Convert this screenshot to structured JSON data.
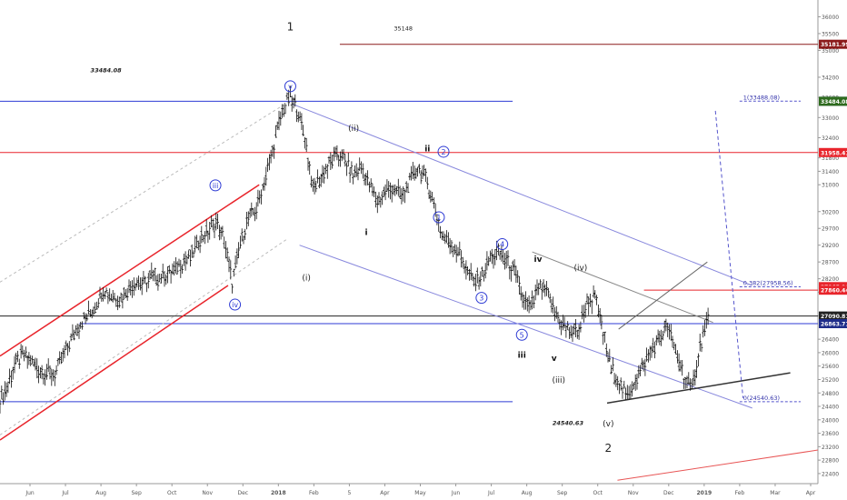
{
  "chart_data": {
    "type": "ohlc",
    "title": "",
    "xlabel": "",
    "ylabel": "",
    "y_axis_side": "right",
    "ylim": [
      22100,
      36500
    ],
    "x_ticks": [
      "Jun",
      "Jul",
      "Aug",
      "Sep",
      "Oct",
      "Nov",
      "Dec",
      "2018",
      "Feb",
      "5",
      "Apr",
      "May",
      "Jun",
      "Jul",
      "Aug",
      "Sep",
      "Oct",
      "Nov",
      "Dec",
      "2019",
      "Feb",
      "Mar",
      "Apr"
    ],
    "y_ticks": [
      36000,
      35500,
      35000,
      34200,
      33600,
      33000,
      32400,
      31800,
      31400,
      31000,
      30200,
      29700,
      29200,
      28700,
      28200,
      27800,
      27100,
      26400,
      26000,
      25600,
      25200,
      24800,
      24400,
      24000,
      23600,
      23200,
      22800,
      22400
    ],
    "price_tags": [
      {
        "value": "35181.99",
        "color": "#8b1a1a"
      },
      {
        "value": "33484.08",
        "color": "#1f2d8a"
      },
      {
        "value": "33484.08",
        "color": "#2e6b1e"
      },
      {
        "value": "31958.41",
        "color": "#e8242b"
      },
      {
        "value": "27965.96",
        "color": "#e8242b"
      },
      {
        "value": "27860.44",
        "color": "#e8242b"
      },
      {
        "value": "27090.81",
        "color": "#222222"
      },
      {
        "value": "26863.71",
        "color": "#1f2d8a"
      }
    ],
    "wave_labels": [
      {
        "text": "1",
        "style": "plain",
        "x": "2018-01-27",
        "y": 35600
      },
      {
        "text": "v",
        "style": "circled",
        "x": "2018-01-27",
        "y": 33850
      },
      {
        "text": "iii",
        "style": "circled",
        "x": "2017-11-23",
        "y": 30900
      },
      {
        "text": "iv",
        "style": "circled",
        "x": "2017-12-10",
        "y": 27350
      },
      {
        "text": "(ii)",
        "style": "plain",
        "x": "2018-03-23",
        "y": 32600
      },
      {
        "text": "(i)",
        "style": "plain",
        "x": "2018-02-10",
        "y": 28150
      },
      {
        "text": "i",
        "style": "bold",
        "x": "2018-04-03",
        "y": 29500
      },
      {
        "text": "ii",
        "style": "bold",
        "x": "2018-05-26",
        "y": 32000
      },
      {
        "text": "2",
        "style": "circled",
        "x": "2018-06-09",
        "y": 31900
      },
      {
        "text": "1",
        "style": "circled",
        "x": "2018-06-05",
        "y": 29950
      },
      {
        "text": "4",
        "style": "circled",
        "x": "2018-07-30",
        "y": 29150
      },
      {
        "text": "3",
        "style": "circled",
        "x": "2018-07-12",
        "y": 27550
      },
      {
        "text": "5",
        "style": "circled",
        "x": "2018-08-16",
        "y": 26450
      },
      {
        "text": "iv",
        "style": "bold",
        "x": "2018-08-30",
        "y": 28700
      },
      {
        "text": "iii",
        "style": "bold",
        "x": "2018-08-16",
        "y": 25850
      },
      {
        "text": "v",
        "style": "bold",
        "x": "2018-09-13",
        "y": 25750
      },
      {
        "text": "(iv)",
        "style": "plain",
        "x": "2018-10-06",
        "y": 28450
      },
      {
        "text": "(iii)",
        "style": "plain",
        "x": "2018-09-17",
        "y": 25100
      },
      {
        "text": "(v)",
        "style": "plain",
        "x": "2018-10-30",
        "y": 23800
      },
      {
        "text": "2",
        "style": "plain",
        "x": "2018-10-30",
        "y": 23050
      }
    ],
    "annotations": [
      {
        "text": "33484.08",
        "style": "italic",
        "x": "2017-08-20",
        "y": 34350
      },
      {
        "text": "35148",
        "style": "plain",
        "x": "2018-05-05",
        "y": 35600
      },
      {
        "text": "24540.63",
        "style": "italic",
        "x": "2018-09-25",
        "y": 23850
      }
    ],
    "fib_levels": [
      {
        "text": "1(33488.08)",
        "value": 33488.08
      },
      {
        "text": "0.382(27958.56)",
        "value": 27958.56
      },
      {
        "text": "0(24540.63)",
        "value": 24540.63
      }
    ],
    "key_levels": [
      {
        "value": 35181.99,
        "color": "#8b1a1a",
        "from": "2018-03-11",
        "to": "2019-04-30"
      },
      {
        "value": 33484.08,
        "color": "#2e3bd4",
        "from": "2017-05-20",
        "to": "2018-08-08"
      },
      {
        "value": 31958.41,
        "color": "#e8242b",
        "from": "2017-05-20",
        "to": "2019-04-30"
      },
      {
        "value": 27860.44,
        "color": "#e8242b",
        "from": "2018-11-30",
        "to": "2019-04-30"
      },
      {
        "value": 27090.81,
        "color": "#222222",
        "from": "2017-05-20",
        "to": "2019-04-30"
      },
      {
        "value": 26863.71,
        "color": "#2e3bd4",
        "from": "2017-07-28",
        "to": "2019-04-30"
      },
      {
        "value": 24540.63,
        "color": "#2e3bd4",
        "from": "2017-05-20",
        "to": "2018-08-08"
      }
    ],
    "trend_lines": [
      {
        "color": "#e8242b",
        "width": 1.5,
        "dash": "",
        "from": [
          "2017-05-20",
          25900
        ],
        "to": [
          "2017-12-31",
          31000
        ]
      },
      {
        "color": "#e8242b",
        "width": 1.5,
        "dash": "",
        "from": [
          "2017-05-20",
          23400
        ],
        "to": [
          "2017-12-04",
          28000
        ]
      },
      {
        "color": "#bbbbbb",
        "width": 1,
        "dash": "3,3",
        "from": [
          "2017-05-20",
          28100
        ],
        "to": [
          "2018-01-27",
          33500
        ]
      },
      {
        "color": "#bbbbbb",
        "width": 1,
        "dash": "3,3",
        "from": [
          "2017-05-20",
          23550
        ],
        "to": [
          "2018-01-25",
          29400
        ]
      },
      {
        "color": "#8888dd",
        "width": 1,
        "dash": "",
        "from": [
          "2018-01-29",
          33400
        ],
        "to": [
          "2019-03-04",
          28000
        ]
      },
      {
        "color": "#8888dd",
        "width": 1,
        "dash": "",
        "from": [
          "2018-02-04",
          29200
        ],
        "to": [
          "2019-03-04",
          24350
        ]
      },
      {
        "color": "#888888",
        "width": 1,
        "dash": "",
        "from": [
          "2018-08-25",
          29000
        ],
        "to": [
          "2019-01-29",
          26900
        ]
      },
      {
        "color": "#666666",
        "width": 1,
        "dash": "",
        "from": [
          "2018-11-08",
          26700
        ],
        "to": [
          "2019-01-24",
          28700
        ]
      },
      {
        "color": "#333333",
        "width": 1.5,
        "dash": "",
        "from": [
          "2018-10-29",
          24500
        ],
        "to": [
          "2019-04-06",
          25400
        ]
      },
      {
        "color": "#e85555",
        "width": 1,
        "dash": "",
        "from": [
          "2018-11-07",
          22200
        ],
        "to": [
          "2019-04-30",
          23100
        ]
      },
      {
        "color": "#5555cc",
        "width": 1,
        "dash": "4,3",
        "from": [
          "2019-01-31",
          33200
        ],
        "to": [
          "2019-02-24",
          24650
        ]
      }
    ],
    "series": [
      {
        "name": "",
        "ohlc_x": [
          "2017-05-20",
          "2017-05-27",
          "2017-06-03",
          "2017-06-10",
          "2017-06-17",
          "2017-06-24",
          "2017-07-01",
          "2017-07-08",
          "2017-07-15",
          "2017-07-22",
          "2017-07-29",
          "2017-08-05",
          "2017-08-12",
          "2017-08-19",
          "2017-08-26",
          "2017-09-02",
          "2017-09-09",
          "2017-09-16",
          "2017-09-23",
          "2017-09-30",
          "2017-10-07",
          "2017-10-14",
          "2017-10-21",
          "2017-10-28",
          "2017-11-04",
          "2017-11-11",
          "2017-11-18",
          "2017-11-25",
          "2017-12-02",
          "2017-12-09",
          "2017-12-16",
          "2017-12-23",
          "2017-12-30",
          "2018-01-06",
          "2018-01-13",
          "2018-01-20",
          "2018-01-27",
          "2018-02-03",
          "2018-02-10",
          "2018-02-17",
          "2018-02-24",
          "2018-03-03",
          "2018-03-10",
          "2018-03-17",
          "2018-03-24",
          "2018-03-31",
          "2018-04-07",
          "2018-04-14",
          "2018-04-21",
          "2018-04-28",
          "2018-05-05",
          "2018-05-12",
          "2018-05-19",
          "2018-05-26",
          "2018-06-02",
          "2018-06-09",
          "2018-06-16",
          "2018-06-23",
          "2018-06-30",
          "2018-07-07",
          "2018-07-14",
          "2018-07-21",
          "2018-07-28",
          "2018-08-04",
          "2018-08-11",
          "2018-08-18",
          "2018-08-25",
          "2018-09-01",
          "2018-09-08",
          "2018-09-15",
          "2018-09-22",
          "2018-09-29",
          "2018-10-06",
          "2018-10-13",
          "2018-10-20",
          "2018-10-27",
          "2018-11-03",
          "2018-11-10",
          "2018-11-17",
          "2018-11-24",
          "2018-12-01",
          "2018-12-08",
          "2018-12-15",
          "2018-12-22",
          "2018-12-29",
          "2019-01-05",
          "2019-01-12",
          "2019-01-19"
        ],
        "close": [
          24900,
          25600,
          25900,
          25800,
          25500,
          25400,
          25300,
          25900,
          26400,
          26800,
          27100,
          27400,
          27900,
          27700,
          27600,
          27900,
          28100,
          28000,
          28300,
          28200,
          28350,
          28500,
          28700,
          28900,
          29400,
          29600,
          29900,
          29300,
          28100,
          29200,
          30000,
          30300,
          31100,
          32000,
          33000,
          33600,
          33300,
          32400,
          30900,
          31200,
          31600,
          31900,
          31700,
          31300,
          31500,
          31000,
          30500,
          30800,
          30900,
          30600,
          31100,
          31500,
          31200,
          30400,
          29500,
          29300,
          29000,
          28500,
          28100,
          28300,
          28800,
          29000,
          28700,
          28400,
          27600,
          27300,
          27900,
          27800,
          27200,
          26800,
          26600,
          26700,
          27500,
          27600,
          26600,
          25500,
          25100,
          24700,
          25200,
          25600,
          26100,
          26400,
          26800,
          26000,
          25300,
          24900,
          26200,
          27000
        ]
      }
    ]
  }
}
